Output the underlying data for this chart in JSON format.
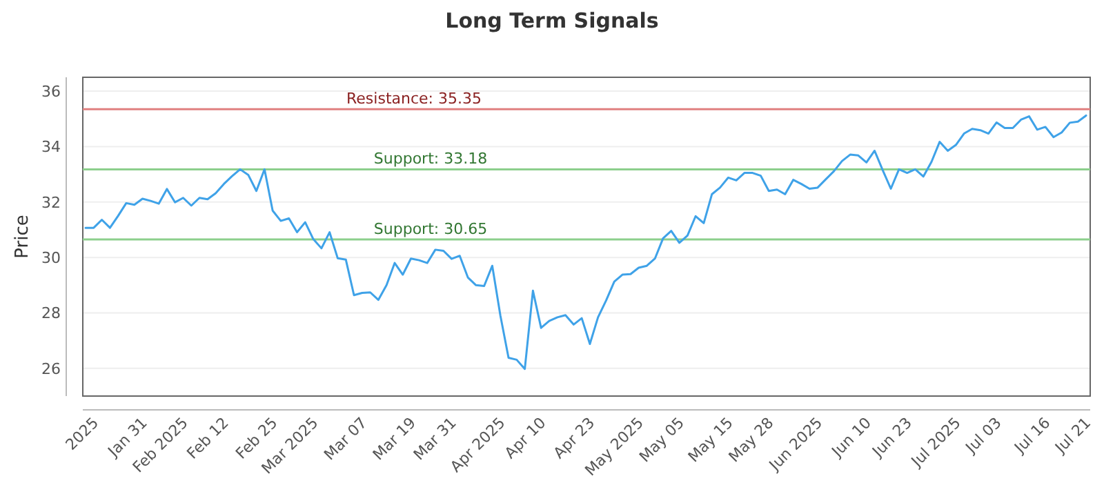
{
  "chart_data": {
    "type": "line",
    "title": "Long Term Signals",
    "ylabel": "Price",
    "categories": [
      null,
      "2025",
      null,
      null,
      null,
      null,
      null,
      "Jan 31",
      null,
      null,
      null,
      null,
      "Feb 2025",
      null,
      null,
      null,
      null,
      "Feb 12",
      null,
      null,
      null,
      null,
      null,
      "Feb 25",
      null,
      null,
      null,
      null,
      "Mar 2025",
      null,
      null,
      null,
      null,
      null,
      "Mar 07",
      null,
      null,
      null,
      null,
      null,
      "Mar 19",
      null,
      null,
      null,
      null,
      "Mar 31",
      null,
      null,
      null,
      null,
      null,
      "Apr 2025",
      null,
      null,
      null,
      null,
      "Apr 10",
      null,
      null,
      null,
      null,
      null,
      "Apr 23",
      null,
      null,
      null,
      null,
      null,
      "May 2025",
      null,
      null,
      null,
      null,
      "May 05",
      null,
      null,
      null,
      null,
      null,
      "May 15",
      null,
      null,
      null,
      null,
      "May 28",
      null,
      null,
      null,
      null,
      null,
      "Jun 2025",
      null,
      null,
      null,
      null,
      null,
      "Jun 10",
      null,
      null,
      null,
      null,
      "Jun 23",
      null,
      null,
      null,
      null,
      null,
      "Jul 2025",
      null,
      null,
      null,
      null,
      "Jul 03",
      null,
      null,
      null,
      null,
      null,
      "Jul 16",
      null,
      null,
      null,
      null,
      "Jul 21"
    ],
    "series": [
      {
        "color": "#3fa2e8",
        "values": [
          31.07,
          31.07,
          31.36,
          31.07,
          31.5,
          31.96,
          31.9,
          32.12,
          32.04,
          31.94,
          32.47,
          31.99,
          32.15,
          31.87,
          32.15,
          32.1,
          32.32,
          32.65,
          32.93,
          33.18,
          32.98,
          32.4,
          33.18,
          31.69,
          31.32,
          31.41,
          30.91,
          31.27,
          30.66,
          30.33,
          30.91,
          29.97,
          29.92,
          28.64,
          28.72,
          28.74,
          28.47,
          29.0,
          29.8,
          29.38,
          29.96,
          29.9,
          29.8,
          30.28,
          30.24,
          29.95,
          30.06,
          29.28,
          29.0,
          28.97,
          29.7,
          27.9,
          26.38,
          26.31,
          25.98,
          28.8,
          27.46,
          27.71,
          27.84,
          27.92,
          27.58,
          27.81,
          26.88,
          27.84,
          28.45,
          29.13,
          29.38,
          29.4,
          29.63,
          29.7,
          29.96,
          30.69,
          30.96,
          30.53,
          30.79,
          31.49,
          31.24,
          32.28,
          32.52,
          32.88,
          32.78,
          33.05,
          33.05,
          32.95,
          32.4,
          32.45,
          32.28,
          32.8,
          32.65,
          32.48,
          32.52,
          32.82,
          33.11,
          33.48,
          33.71,
          33.68,
          33.43,
          33.85,
          33.15,
          32.48,
          33.18,
          33.05,
          33.18,
          32.92,
          33.45,
          34.17,
          33.85,
          34.06,
          34.47,
          34.64,
          34.59,
          34.47,
          34.87,
          34.67,
          34.67,
          34.97,
          35.09,
          34.61,
          34.71,
          34.34,
          34.51,
          34.86,
          34.9,
          35.12
        ]
      }
    ],
    "ylim": [
      25,
      36.5
    ],
    "yticks": [
      26,
      28,
      30,
      32,
      34,
      36
    ],
    "grid": "y",
    "marker": "none",
    "line_style": "solid",
    "ref_lines": [
      {
        "axis": "y",
        "value": 35.35,
        "label": "Resistance: 35.35",
        "color": "#e08080"
      },
      {
        "axis": "y",
        "value": 33.18,
        "label": "Support: 33.18",
        "color": "#8ccf8c"
      },
      {
        "axis": "y",
        "value": 30.65,
        "label": "Support: 30.65",
        "color": "#8ccf8c"
      }
    ]
  }
}
